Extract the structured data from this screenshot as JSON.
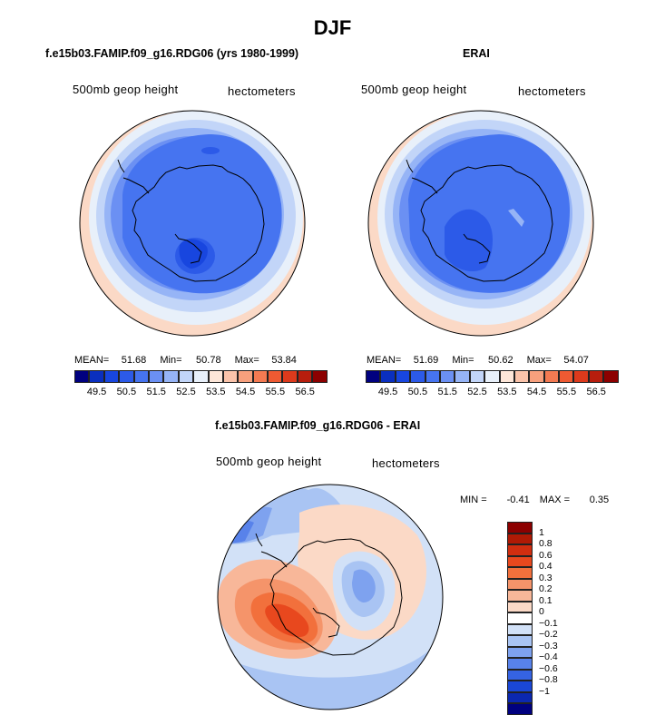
{
  "figure_title": "DJF",
  "panel_left": {
    "title": "f.e15b03.FAMIP.f09_g16.RDG06 (yrs 1980-1999)",
    "field": "500mb geop height",
    "units": "hectometers",
    "stats": {
      "mean_label": "MEAN=",
      "mean": "51.68",
      "min_label": "Min=",
      "min": "50.78",
      "max_label": "Max=",
      "max": "53.84"
    }
  },
  "panel_right": {
    "title": "ERAI",
    "field": "500mb geop height",
    "units": "hectometers",
    "stats": {
      "mean_label": "MEAN=",
      "mean": "51.69",
      "min_label": "Min=",
      "min": "50.62",
      "max_label": "Max=",
      "max": "54.07"
    }
  },
  "colorbar_top": {
    "colors": [
      "#00007f",
      "#0a2fbf",
      "#1846df",
      "#2c5ae8",
      "#4674f0",
      "#6b90f3",
      "#96b4f6",
      "#c2d5f8",
      "#e8f0fa",
      "#fde6d8",
      "#fac3aa",
      "#f7a07d",
      "#f47a52",
      "#ee5a32",
      "#dd3a1c",
      "#b71e0d",
      "#8c0000"
    ],
    "labels": [
      "49.5",
      "50.5",
      "51.5",
      "52.5",
      "53.5",
      "54.5",
      "55.5",
      "56.5"
    ]
  },
  "panel_diff": {
    "title": "f.e15b03.FAMIP.f09_g16.RDG06 - ERAI",
    "field": "500mb geop height",
    "units": "hectometers",
    "stats": {
      "min_label": "MIN =",
      "min": "-0.41",
      "max_label": "MAX =",
      "max": "0.35"
    }
  },
  "colorbar_diff": {
    "colors": [
      "#8c0000",
      "#b01a05",
      "#d12e10",
      "#e8481e",
      "#f2703c",
      "#f5946a",
      "#f8b799",
      "#fbd9c6",
      "#ffffff",
      "#d2e1f7",
      "#a9c4f3",
      "#7ea2ef",
      "#5882ea",
      "#3563e3",
      "#1a47d6",
      "#0b28b0",
      "#00007f"
    ],
    "labels": [
      "1",
      "0.8",
      "0.6",
      "0.4",
      "0.3",
      "0.2",
      "0.1",
      "0",
      "−0.1",
      "−0.2",
      "−0.3",
      "−0.4",
      "−0.6",
      "−0.8",
      "−1"
    ]
  }
}
